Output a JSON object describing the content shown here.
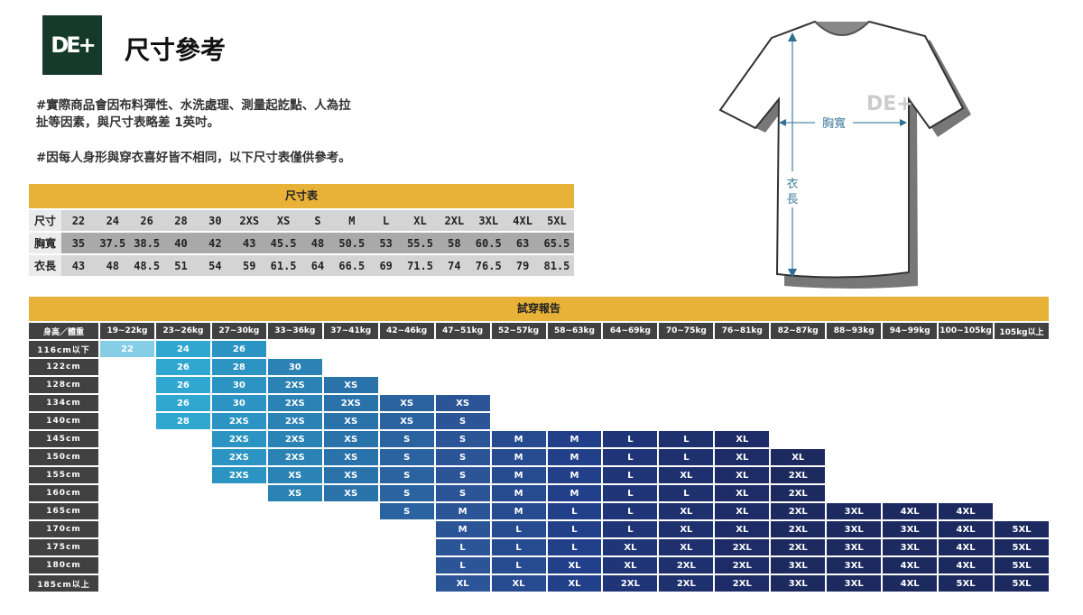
{
  "logo": {
    "text": "DE+"
  },
  "title": "尺寸參考",
  "notes": [
    "#實際商品會因布料彈性、水洗處理、測量起訖點、人為拉",
    "扯等因素，與尺寸表略差 1英吋。",
    "#因每人身形與穿衣喜好皆不相同，以下尺寸表僅供參考。"
  ],
  "size_table": {
    "title": "尺寸表",
    "rows": [
      {
        "label": "尺寸",
        "values": [
          "22",
          "24",
          "26",
          "28",
          "30",
          "2XS",
          "XS",
          "S",
          "M",
          "L",
          "XL",
          "2XL",
          "3XL",
          "4XL",
          "5XL"
        ]
      },
      {
        "label": "胸寬",
        "values": [
          "35",
          "37.5",
          "38.5",
          "40",
          "42",
          "43",
          "45.5",
          "48",
          "50.5",
          "53",
          "55.5",
          "58",
          "60.5",
          "63",
          "65.5"
        ]
      },
      {
        "label": "衣長",
        "values": [
          "43",
          "48",
          "48.5",
          "51",
          "54",
          "59",
          "61.5",
          "64",
          "66.5",
          "69",
          "71.5",
          "74",
          "76.5",
          "79",
          "81.5"
        ]
      }
    ]
  },
  "diagram": {
    "chest_label": "胸寬",
    "length_label1": "衣",
    "length_label2": "長"
  },
  "fit_table": {
    "title": "試穿報告",
    "corner": "身高／體重",
    "weights": [
      "19~22kg",
      "23~26kg",
      "27~30kg",
      "33~36kg",
      "37~41kg",
      "42~46kg",
      "47~51kg",
      "52~57kg",
      "58~63kg",
      "64~69kg",
      "70~75kg",
      "76~81kg",
      "82~87kg",
      "88~93kg",
      "94~99kg",
      "100~105kg",
      "105kg以上"
    ],
    "column_colors": [
      "#86cde6",
      "#2fa7d0",
      "#2b94c2",
      "#2a82b5",
      "#2a73aa",
      "#2b62a0",
      "#2b5597",
      "#264b90",
      "#22408a",
      "#1f3578",
      "#1e306d",
      "#1d2c66",
      "#1c2a60",
      "#1c2a60",
      "#1c2a60",
      "#1c2a60",
      "#1c2a60"
    ],
    "rows": [
      {
        "height": "116cm以下",
        "sizes": [
          "22",
          "24",
          "26",
          "",
          "",
          "",
          "",
          "",
          "",
          "",
          "",
          "",
          "",
          "",
          "",
          "",
          ""
        ]
      },
      {
        "height": "122cm",
        "sizes": [
          "",
          "26",
          "28",
          "30",
          "",
          "",
          "",
          "",
          "",
          "",
          "",
          "",
          "",
          "",
          "",
          "",
          ""
        ]
      },
      {
        "height": "128cm",
        "sizes": [
          "",
          "26",
          "30",
          "2XS",
          "XS",
          "",
          "",
          "",
          "",
          "",
          "",
          "",
          "",
          "",
          "",
          "",
          ""
        ]
      },
      {
        "height": "134cm",
        "sizes": [
          "",
          "26",
          "30",
          "2XS",
          "2XS",
          "XS",
          "XS",
          "",
          "",
          "",
          "",
          "",
          "",
          "",
          "",
          "",
          ""
        ]
      },
      {
        "height": "140cm",
        "sizes": [
          "",
          "28",
          "2XS",
          "2XS",
          "XS",
          "XS",
          "S",
          "",
          "",
          "",
          "",
          "",
          "",
          "",
          "",
          "",
          ""
        ]
      },
      {
        "height": "145cm",
        "sizes": [
          "",
          "",
          "2XS",
          "2XS",
          "XS",
          "S",
          "S",
          "M",
          "M",
          "L",
          "L",
          "XL",
          "",
          "",
          "",
          "",
          ""
        ]
      },
      {
        "height": "150cm",
        "sizes": [
          "",
          "",
          "2XS",
          "2XS",
          "XS",
          "S",
          "S",
          "M",
          "M",
          "L",
          "L",
          "XL",
          "XL",
          "",
          "",
          "",
          ""
        ]
      },
      {
        "height": "155cm",
        "sizes": [
          "",
          "",
          "2XS",
          "XS",
          "XS",
          "S",
          "S",
          "M",
          "M",
          "L",
          "XL",
          "XL",
          "2XL",
          "",
          "",
          "",
          ""
        ]
      },
      {
        "height": "160cm",
        "sizes": [
          "",
          "",
          "",
          "XS",
          "XS",
          "S",
          "S",
          "M",
          "M",
          "L",
          "L",
          "XL",
          "2XL",
          "",
          "",
          "",
          ""
        ]
      },
      {
        "height": "165cm",
        "sizes": [
          "",
          "",
          "",
          "",
          "",
          "S",
          "M",
          "M",
          "L",
          "L",
          "XL",
          "XL",
          "2XL",
          "3XL",
          "4XL",
          "4XL",
          ""
        ]
      },
      {
        "height": "170cm",
        "sizes": [
          "",
          "",
          "",
          "",
          "",
          "",
          "M",
          "L",
          "L",
          "L",
          "XL",
          "XL",
          "2XL",
          "3XL",
          "3XL",
          "4XL",
          "5XL"
        ]
      },
      {
        "height": "175cm",
        "sizes": [
          "",
          "",
          "",
          "",
          "",
          "",
          "L",
          "L",
          "L",
          "XL",
          "XL",
          "2XL",
          "2XL",
          "3XL",
          "3XL",
          "4XL",
          "5XL"
        ]
      },
      {
        "height": "180cm",
        "sizes": [
          "",
          "",
          "",
          "",
          "",
          "",
          "L",
          "L",
          "XL",
          "XL",
          "2XL",
          "2XL",
          "3XL",
          "3XL",
          "4XL",
          "4XL",
          "5XL"
        ]
      },
      {
        "height": "185cm以上",
        "sizes": [
          "",
          "",
          "",
          "",
          "",
          "",
          "XL",
          "XL",
          "XL",
          "2XL",
          "2XL",
          "2XL",
          "3XL",
          "3XL",
          "4XL",
          "5XL",
          "5XL"
        ]
      }
    ]
  }
}
